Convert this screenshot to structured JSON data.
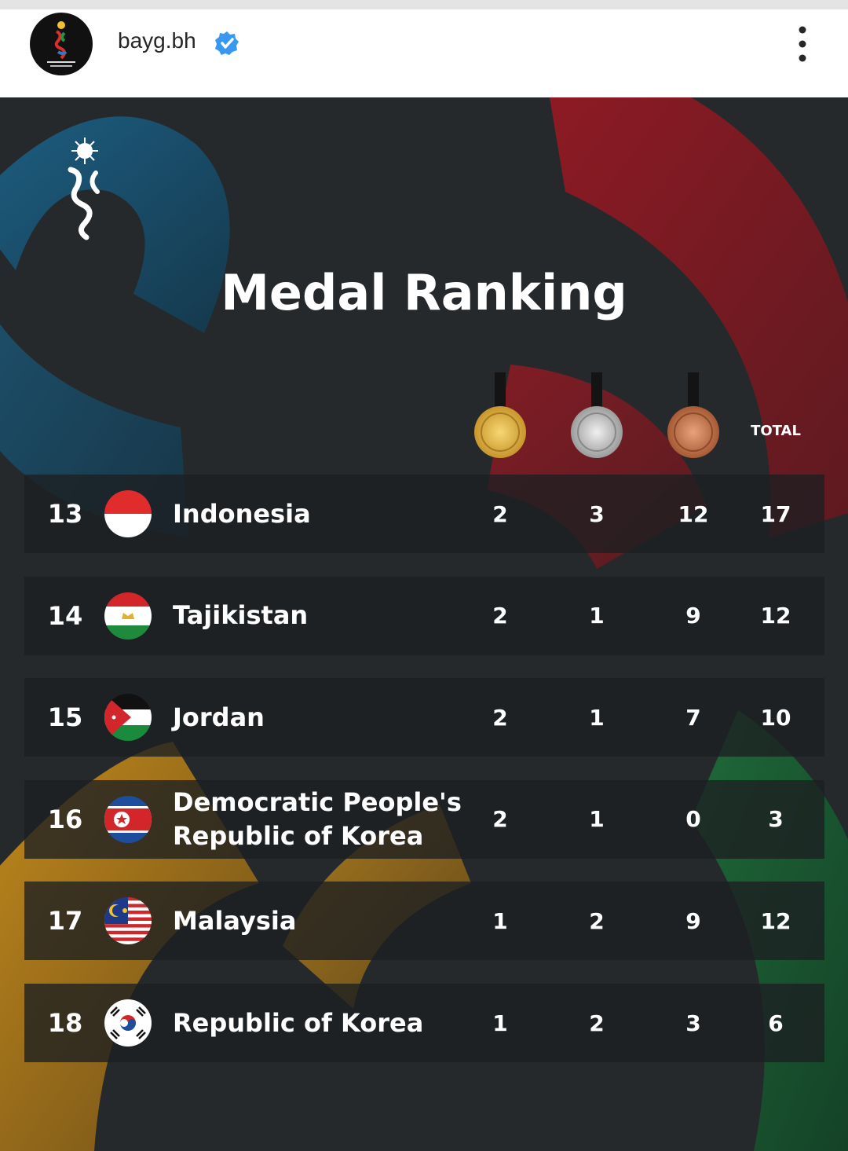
{
  "header": {
    "username": "bayg.bh"
  },
  "post": {
    "title": "Medal Ranking",
    "table": {
      "total_header": "TOTAL",
      "rows": [
        {
          "rank": "13",
          "country": "Indonesia",
          "gold": "2",
          "silver": "3",
          "bronze": "12",
          "total": "17"
        },
        {
          "rank": "14",
          "country": "Tajikistan",
          "gold": "2",
          "silver": "1",
          "bronze": "9",
          "total": "12"
        },
        {
          "rank": "15",
          "country": "Jordan",
          "gold": "2",
          "silver": "1",
          "bronze": "7",
          "total": "10"
        },
        {
          "rank": "16",
          "country": "Democratic People's Republic of Korea",
          "gold": "2",
          "silver": "1",
          "bronze": "0",
          "total": "3"
        },
        {
          "rank": "17",
          "country": "Malaysia",
          "gold": "1",
          "silver": "2",
          "bronze": "9",
          "total": "12"
        },
        {
          "rank": "18",
          "country": "Republic of Korea",
          "gold": "1",
          "silver": "2",
          "bronze": "3",
          "total": "6"
        }
      ]
    }
  }
}
